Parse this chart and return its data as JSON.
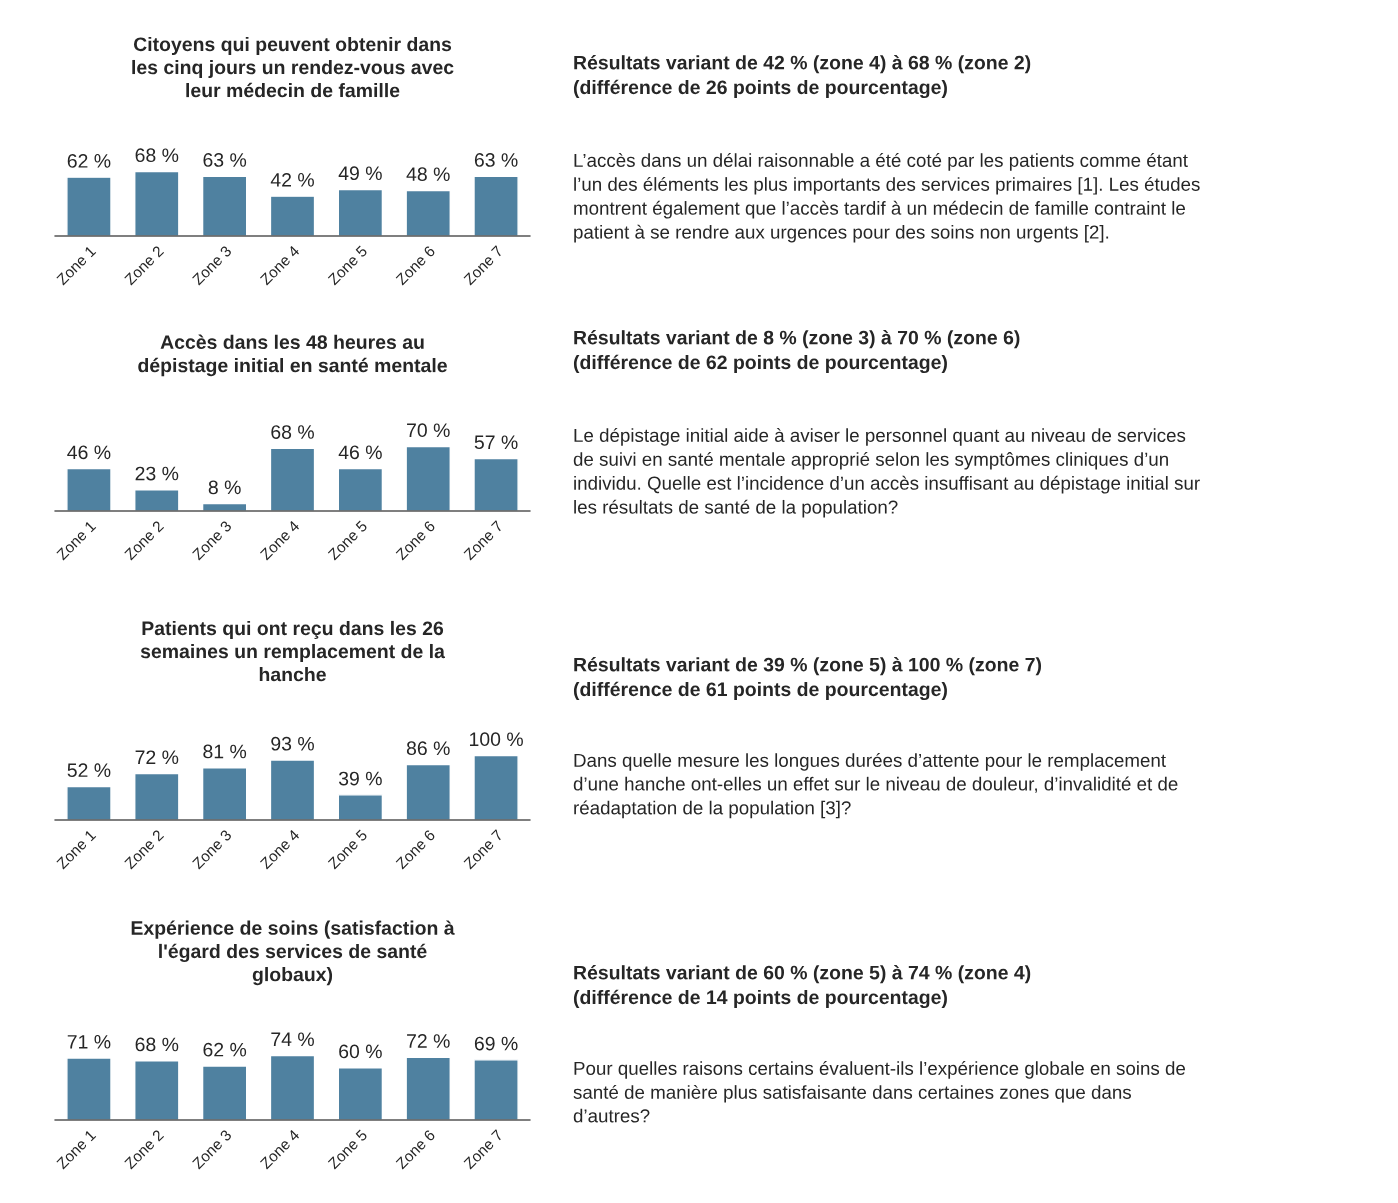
{
  "chart_data": [
    {
      "type": "bar",
      "title": "Citoyens qui peuvent obtenir dans\nles cinq jours un rendez-vous avec\nleur médecin de famille",
      "categories": [
        "Zone 1",
        "Zone 2",
        "Zone 3",
        "Zone 4",
        "Zone 5",
        "Zone 6",
        "Zone 7"
      ],
      "values": [
        62,
        68,
        63,
        42,
        49,
        48,
        63
      ],
      "value_labels": [
        "62 %",
        "68 %",
        "63 %",
        "42 %",
        "49 %",
        "48 %",
        "63 %"
      ],
      "color": "#4f81a0",
      "tick_labels": "x"
    },
    {
      "type": "other",
      "title": "Résultats variant de 42 % (zone 4) à 68 % (zone 2)\n(différence de 26 points de pourcentage)",
      "annotations": [
        "L’accès dans un délai raisonnable a été coté par les patients comme étant\nl’un des éléments les plus importants des services primaires [1]. Les études\nmontrent également que l’accès tardif à un médecin de famille contraint le\npatient à se rendre aux urgences pour des soins non urgents [2]."
      ]
    },
    {
      "type": "bar",
      "title": "Accès dans les 48 heures au\ndépistage initial en santé mentale",
      "categories": [
        "Zone 1",
        "Zone 2",
        "Zone 3",
        "Zone 4",
        "Zone 5",
        "Zone 6",
        "Zone 7"
      ],
      "values": [
        46,
        23,
        8,
        68,
        46,
        70,
        57
      ],
      "value_labels": [
        "46 %",
        "23 %",
        "8 %",
        "68 %",
        "46 %",
        "70 %",
        "57 %"
      ],
      "color": "#4f81a0",
      "tick_labels": "x"
    },
    {
      "type": "other",
      "title": "Résultats variant de 8 % (zone 3) à 70 % (zone 6)\n(différence de 62 points de pourcentage)",
      "annotations": [
        "Le dépistage initial aide à aviser le personnel quant au niveau de services\nde suivi en santé mentale approprié selon les symptômes cliniques d’un\nindividu. Quelle est l’incidence d’un accès insuffisant au dépistage initial sur\nles résultats de santé de la population?"
      ]
    },
    {
      "type": "bar",
      "title": "Patients qui ont reçu dans les 26\nsemaines un remplacement de la\nhanche",
      "categories": [
        "Zone 1",
        "Zone 2",
        "Zone 3",
        "Zone 4",
        "Zone 5",
        "Zone 6",
        "Zone 7"
      ],
      "values": [
        52,
        72,
        81,
        93,
        39,
        86,
        100
      ],
      "value_labels": [
        "52 %",
        "72 %",
        "81 %",
        "93 %",
        "39 %",
        "86 %",
        "100 %"
      ],
      "color": "#4f81a0",
      "tick_labels": "x"
    },
    {
      "type": "other",
      "title": "Résultats variant de 39 % (zone 5) à 100 % (zone 7)\n(différence de 61 points de pourcentage)",
      "annotations": [
        "Dans quelle mesure les longues durées d’attente pour le remplacement\nd’une hanche ont-elles un effet sur le niveau de douleur, d’invalidité et de\nréadaptation de la population [3]?"
      ]
    },
    {
      "type": "bar",
      "title": "Expérience de soins (satisfaction à\nl'égard des services de santé\nglobaux)",
      "categories": [
        "Zone 1",
        "Zone 2",
        "Zone 3",
        "Zone 4",
        "Zone 5",
        "Zone 6",
        "Zone 7"
      ],
      "values": [
        71,
        68,
        62,
        74,
        60,
        72,
        69
      ],
      "value_labels": [
        "71 %",
        "68 %",
        "62 %",
        "74 %",
        "60 %",
        "72 %",
        "69 %"
      ],
      "color": "#4f81a0",
      "tick_labels": "x"
    },
    {
      "type": "other",
      "title": "Résultats variant de 60 % (zone 5) à 74 % (zone 4)\n(différence de 14 points de pourcentage)",
      "annotations": [
        "Pour quelles raisons certains évaluent-ils l’expérience globale en soins de\nsanté de manière plus satisfaisante dans certaines zones que dans\nd’autres?"
      ]
    }
  ]
}
